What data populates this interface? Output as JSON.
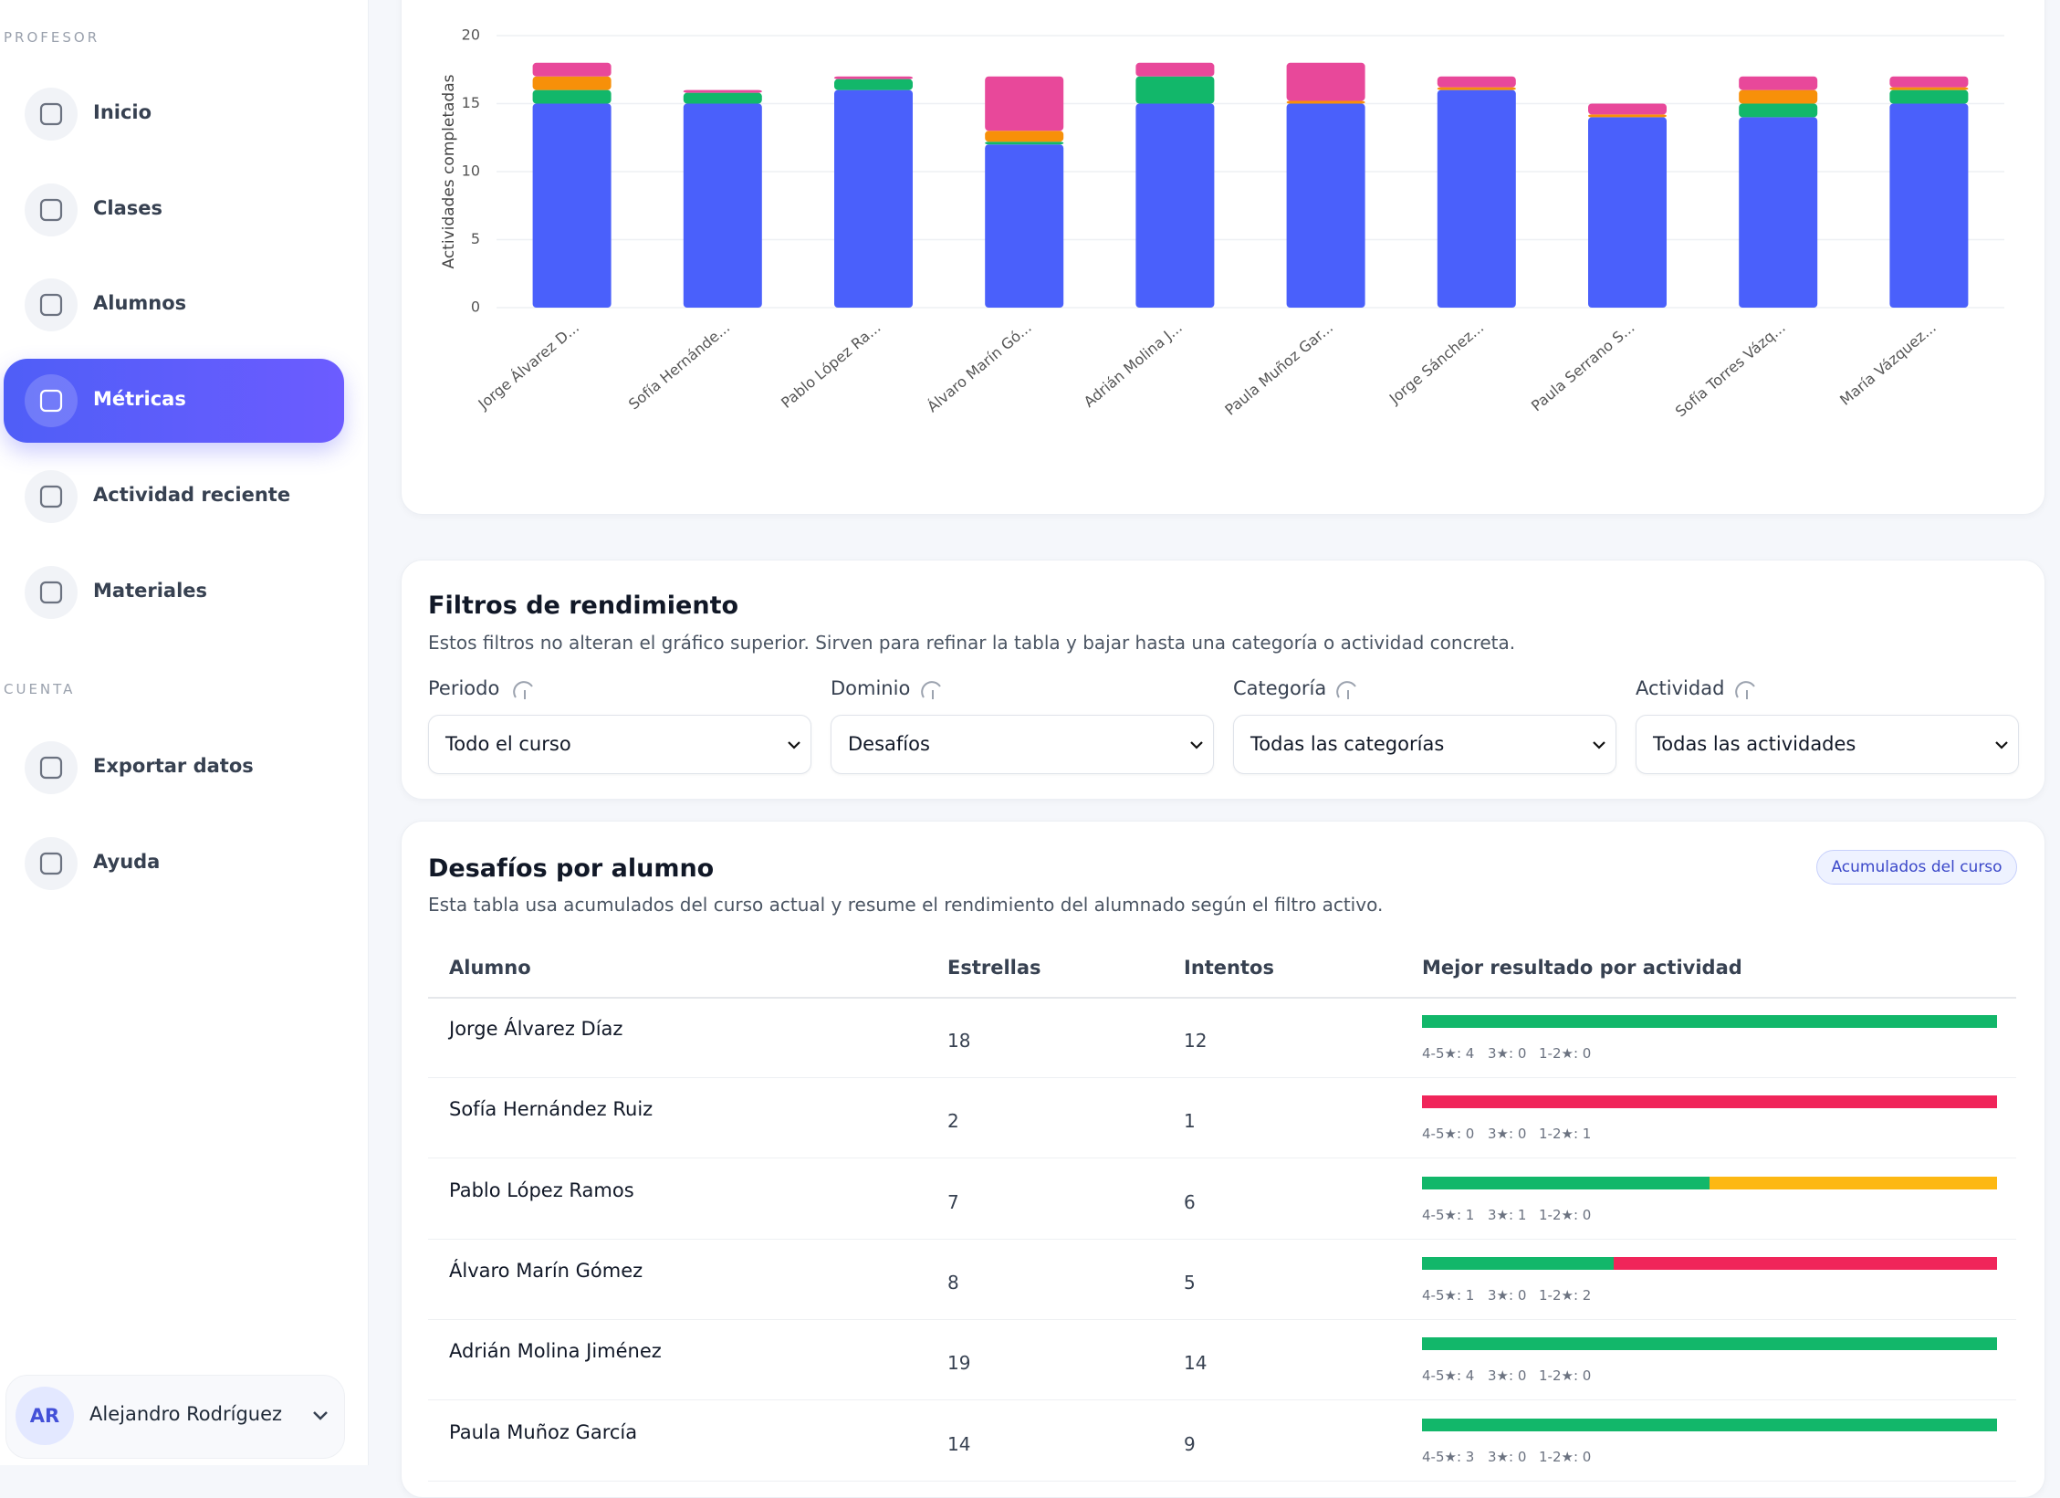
{
  "sidebar": {
    "sections": [
      {
        "heading": "PROFESOR",
        "items": [
          "Inicio",
          "Clases",
          "Alumnos",
          "Métricas",
          "Actividad reciente",
          "Materiales"
        ]
      },
      {
        "heading": "CUENTA",
        "items": [
          "Exportar datos",
          "Ayuda"
        ]
      }
    ],
    "active": {
      "section": 0,
      "item": 3
    },
    "user": {
      "initials": "AR",
      "name": "Alejandro Rodríguez"
    }
  },
  "chart_data": {
    "type": "bar",
    "stacked": true,
    "y_label": "Actividades completadas",
    "categories": [
      "Jorge Álvarez D...",
      "Sofía Hernánde...",
      "Pablo López Ra...",
      "Álvaro Marín Gó...",
      "Adrián Molina J...",
      "Paula Muñoz Gar...",
      "Jorge Sánchez...",
      "Paula Serrano S...",
      "Sofía Torres Vázq...",
      "María Vázquez..."
    ],
    "series": [
      {
        "color": "#4a60fb",
        "values": [
          15,
          15,
          16,
          12,
          15,
          15,
          16,
          14,
          14,
          15
        ]
      },
      {
        "color": "#12b76a",
        "values": [
          1,
          0.8,
          0.8,
          0.2,
          2,
          0,
          0,
          0,
          1,
          1
        ]
      },
      {
        "color": "#f79009",
        "values": [
          1,
          0,
          0,
          0.8,
          0,
          0.2,
          0.2,
          0.2,
          1,
          0.2
        ]
      },
      {
        "color": "#e8489a",
        "values": [
          1,
          0.2,
          0.2,
          4,
          1,
          2.8,
          0.8,
          0.8,
          1,
          0.8
        ]
      }
    ],
    "ylim": [
      0,
      20
    ],
    "yticks": [
      0,
      5,
      10,
      15,
      20
    ],
    "grid": true
  },
  "filters": {
    "title": "Filtros de rendimiento",
    "subtitle": "Estos filtros no alteran el gráfico superior. Sirven para refinar la tabla y bajar hasta una categoría o actividad concreta.",
    "fields": [
      {
        "label": "Periodo",
        "value": "Todo el curso"
      },
      {
        "label": "Dominio",
        "value": "Desafíos"
      },
      {
        "label": "Categoría",
        "value": "Todas las categorías"
      },
      {
        "label": "Actividad",
        "value": "Todas las actividades"
      }
    ]
  },
  "table": {
    "title": "Desafíos por alumno",
    "badge": "Acumulados del curso",
    "subtitle": "Esta tabla usa acumulados del curso actual y resume el rendimiento del alumnado según el filtro activo.",
    "columns": [
      "Alumno",
      "Estrellas",
      "Intentos",
      "Mejor resultado por actividad"
    ],
    "colors": [
      "#12b76a",
      "#fdb813",
      "#f0255a"
    ],
    "rows": [
      {
        "name": "Jorge Álvarez Díaz",
        "stars": 18,
        "attempts": 12,
        "result_counts": [
          4,
          0,
          0
        ],
        "result_labels": [
          "4-5★: 4",
          "3★: 0",
          "1-2★: 0"
        ]
      },
      {
        "name": "Sofía Hernández Ruiz",
        "stars": 2,
        "attempts": 1,
        "result_counts": [
          0,
          0,
          1
        ],
        "result_labels": [
          "4-5★: 0",
          "3★: 0",
          "1-2★: 1"
        ]
      },
      {
        "name": "Pablo López Ramos",
        "stars": 7,
        "attempts": 6,
        "result_counts": [
          1,
          1,
          0
        ],
        "result_labels": [
          "4-5★: 1",
          "3★: 1",
          "1-2★: 0"
        ]
      },
      {
        "name": "Álvaro Marín Gómez",
        "stars": 8,
        "attempts": 5,
        "result_counts": [
          1,
          0,
          2
        ],
        "result_labels": [
          "4-5★: 1",
          "3★: 0",
          "1-2★: 2"
        ]
      },
      {
        "name": "Adrián Molina Jiménez",
        "stars": 19,
        "attempts": 14,
        "result_counts": [
          4,
          0,
          0
        ],
        "result_labels": [
          "4-5★: 4",
          "3★: 0",
          "1-2★: 0"
        ]
      },
      {
        "name": "Paula Muñoz García",
        "stars": 14,
        "attempts": 9,
        "result_counts": [
          3,
          0,
          0
        ],
        "result_labels": [
          "4-5★: 3",
          "3★: 0",
          "1-2★: 0"
        ]
      }
    ]
  }
}
